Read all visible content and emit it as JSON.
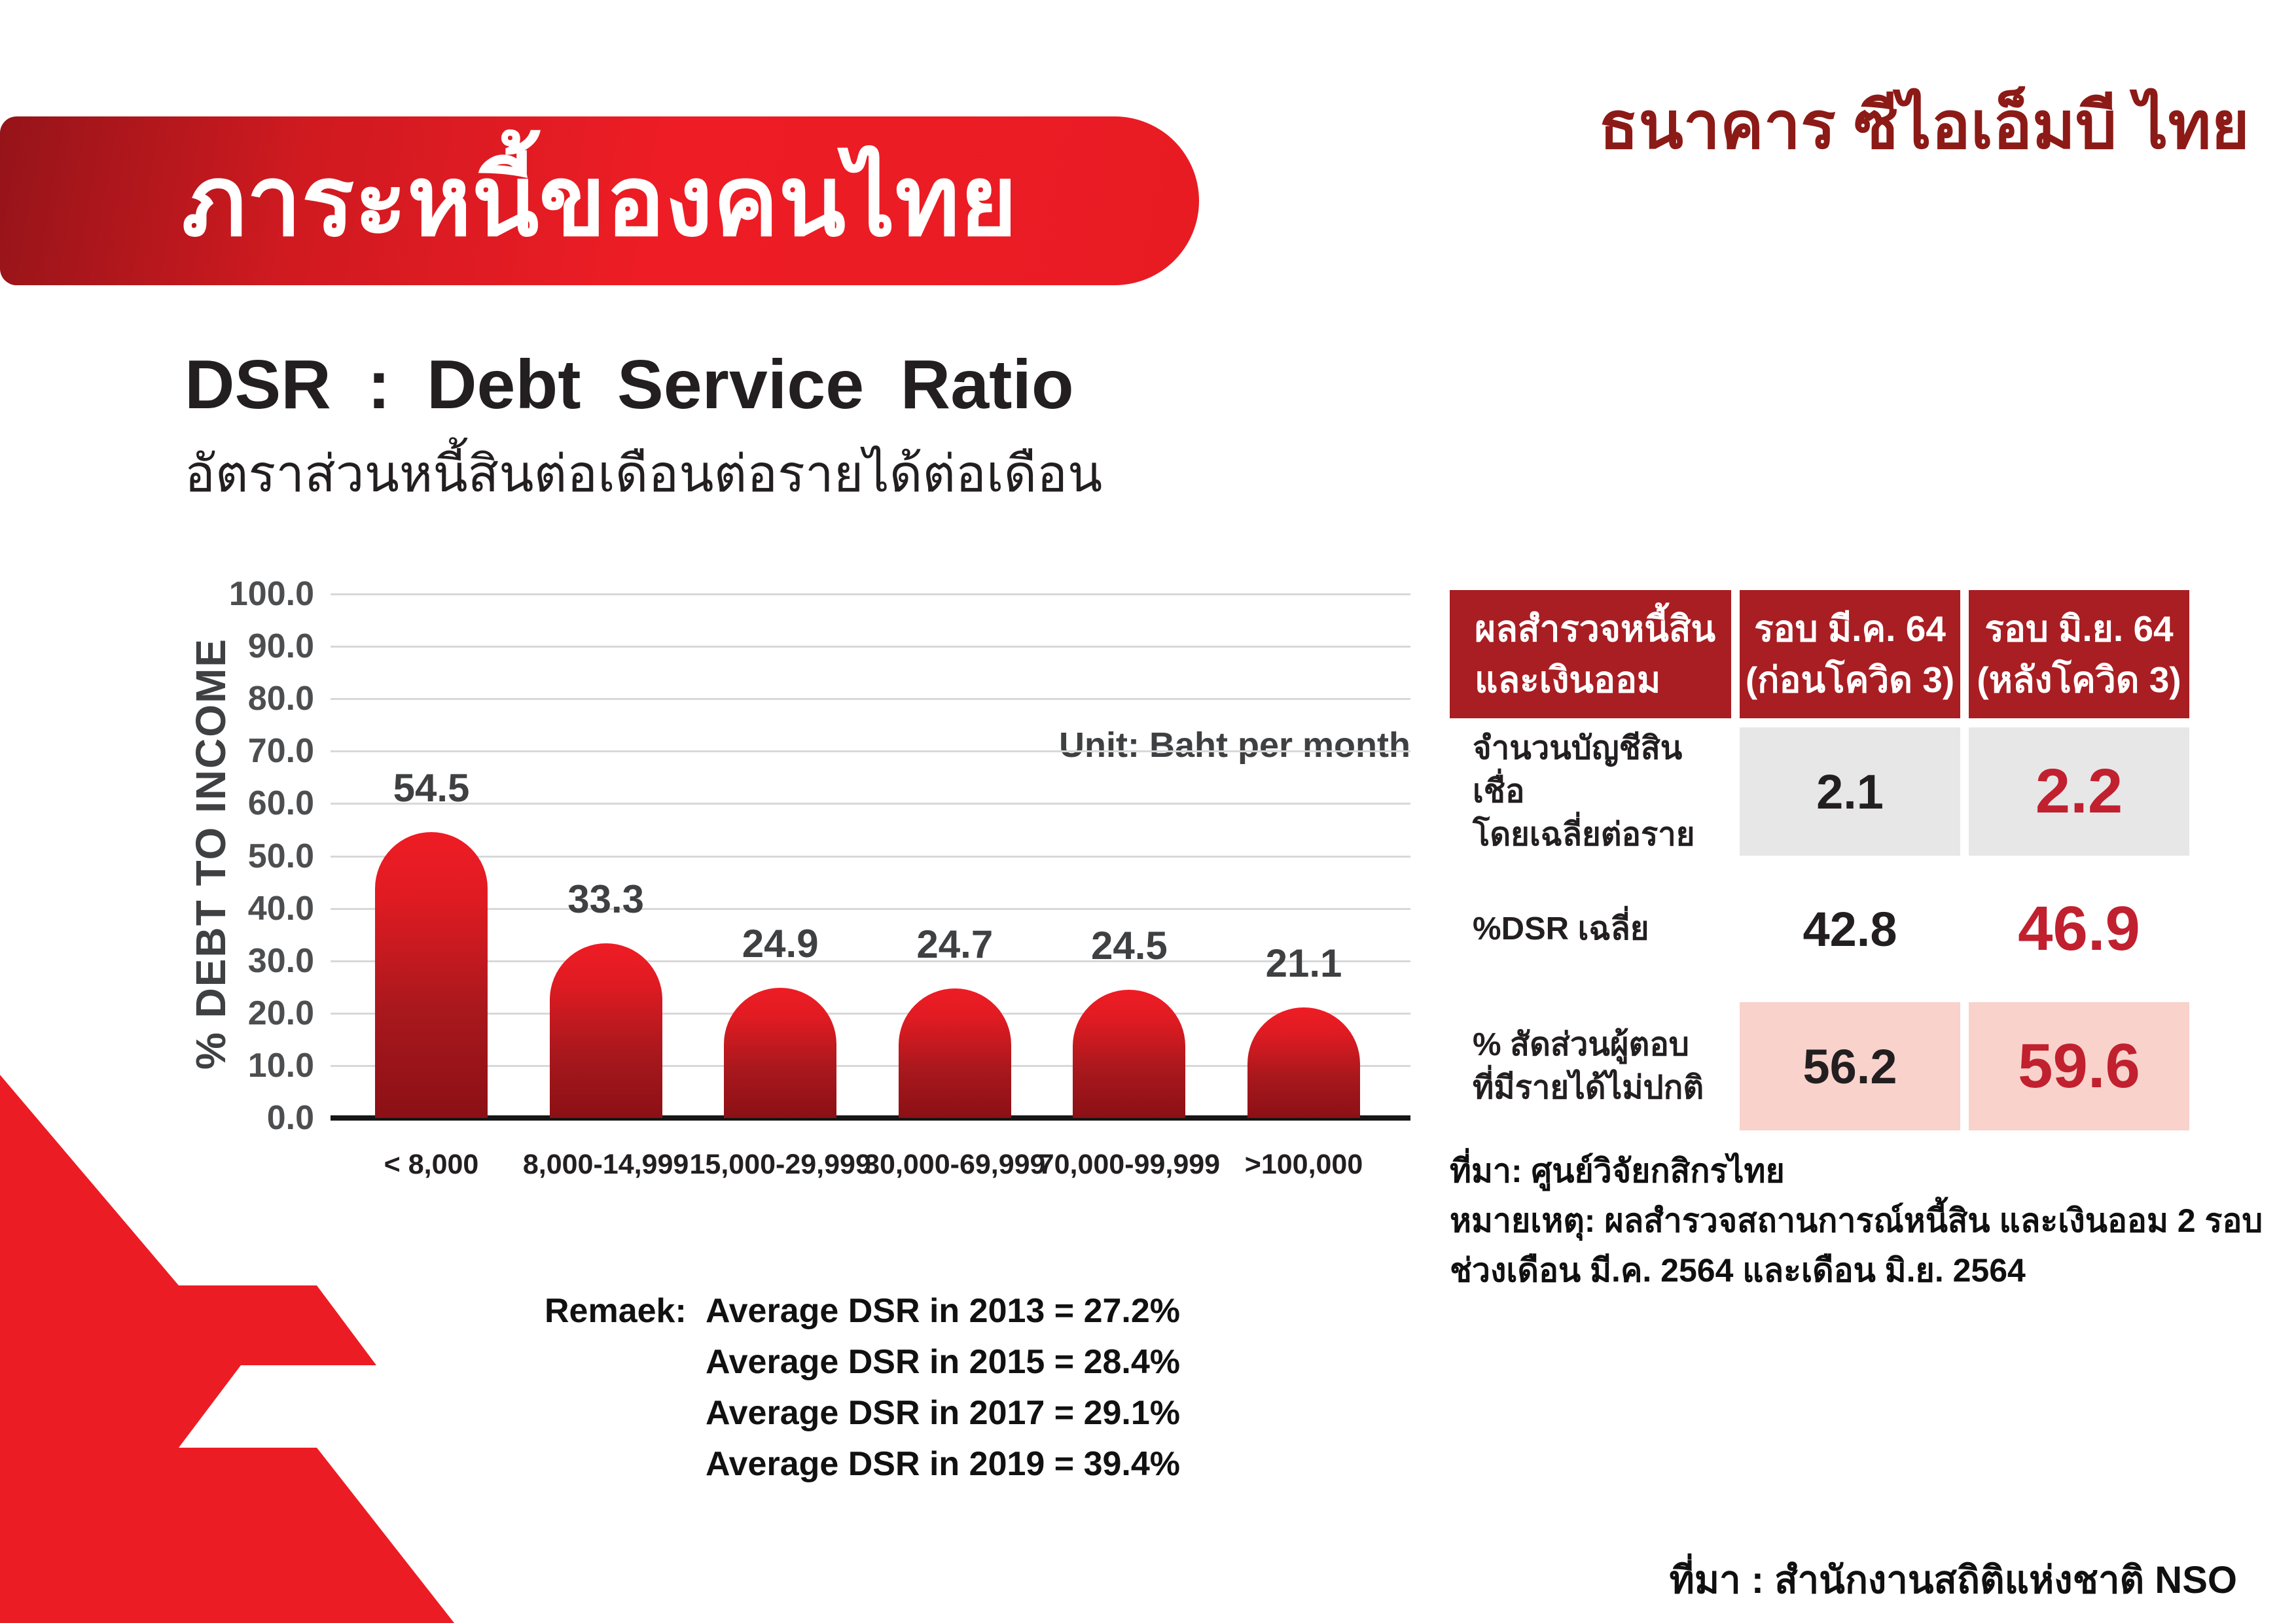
{
  "banner": {
    "title": "ภาระหนี้ของคนไทย"
  },
  "bank_name": "ธนาคาร ซีไอเอ็มบี ไทย",
  "section": {
    "title": "DSR :  Debt Service Ratio",
    "subtitle": "อัตราส่วนหนี้สินต่อเดือนต่อรายได้ต่อเดือน"
  },
  "chart_data": {
    "type": "bar",
    "title": "DSR : Debt Service Ratio",
    "unit_note": "Unit: Baht per month",
    "xlabel": "",
    "ylabel": "% DEBT TO INCOME",
    "ylim": [
      0,
      100
    ],
    "ytick_step": 10,
    "grid": true,
    "categories": [
      "< 8,000",
      "8,000-14,999",
      "15,000-29,999",
      "30,000-69,999",
      "70,000-99,999",
      ">100,000"
    ],
    "values": [
      54.5,
      33.3,
      24.9,
      24.7,
      24.5,
      21.1
    ],
    "bar_color_top": "#ee1c25",
    "bar_color_bottom": "#8b1015"
  },
  "remark": {
    "label": "Remaek:",
    "lines": [
      "Average DSR in 2013 = 27.2%",
      "Average DSR in 2015 = 28.4%",
      "Average DSR in 2017 = 29.1%",
      "Average DSR in 2019 = 39.4%"
    ]
  },
  "table": {
    "header": [
      {
        "line1": "ผลสำรวจหนี้สิน",
        "line2": "และเงินออม"
      },
      {
        "line1": "รอบ มี.ค. 64",
        "line2": "(ก่อนโควิด 3)"
      },
      {
        "line1": "รอบ มิ.ย. 64",
        "line2": "(หลังโควิด 3)"
      }
    ],
    "rows": [
      {
        "label_line1": "จำนวนบัญชีสินเชื่อ",
        "label_line2": "โดยเฉลี่ยต่อราย",
        "march": "2.1",
        "june": "2.2"
      },
      {
        "label_line1": "%DSR เฉลี่ย",
        "label_line2": "",
        "march": "42.8",
        "june": "46.9"
      },
      {
        "label_line1": "% สัดส่วนผู้ตอบ",
        "label_line2": "ที่มีรายได้ไม่ปกติ",
        "march": "56.2",
        "june": "59.6"
      }
    ]
  },
  "notes": {
    "line1": "ที่มา: ศูนย์วิจัยกสิกรไทย",
    "line2": "หมายเหตุ: ผลสำรวจสถานการณ์หนี้สิน และเงินออม 2 รอบ",
    "line3": "ช่วงเดือน มี.ค. 2564 และเดือน มิ.ย. 2564"
  },
  "footer": {
    "source": "ที่มา  :  สำนักงานสถิติแห่งชาติ NSO"
  },
  "colors": {
    "accent_red": "#ec1c24",
    "banner_dark_red": "#951419",
    "table_header_red": "#a81e23",
    "row_gray": "#e7e7e8",
    "row_pink": "#f8d2cb",
    "emphasis_red": "#c1202f",
    "bank_name_red": "#8c1a16",
    "gridline_gray": "#d8d8d8"
  }
}
